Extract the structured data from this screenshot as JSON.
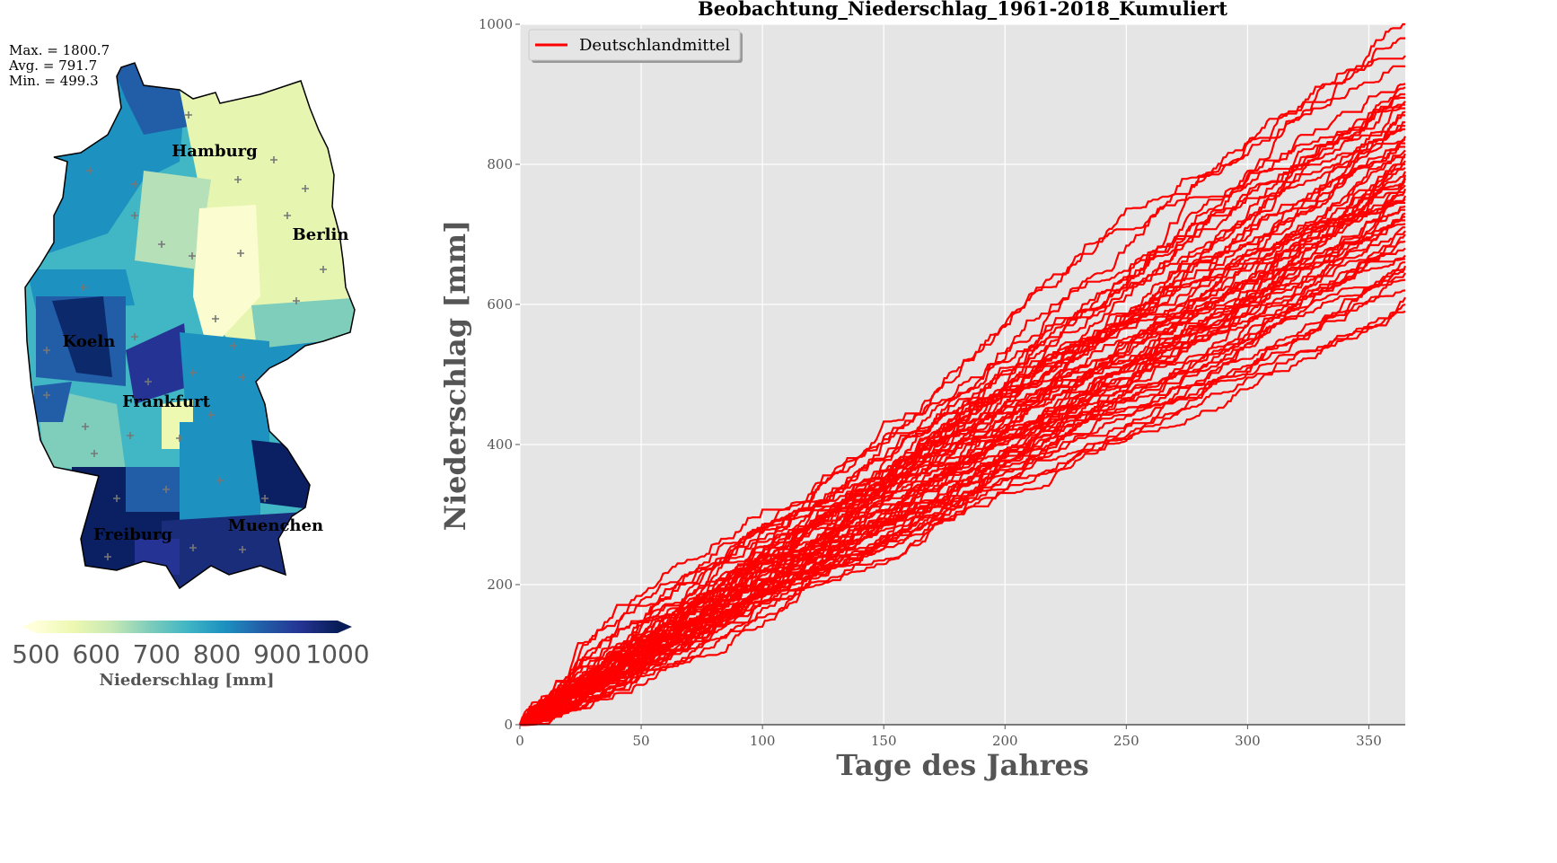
{
  "map": {
    "stats": {
      "max": "Max. = 1800.7",
      "avg": "Avg. = 791.7",
      "min": "Min. = 499.3"
    },
    "cities": [
      "Hamburg",
      "Berlin",
      "Koeln",
      "Frankfurt",
      "Freiburg",
      "Muenchen"
    ],
    "colorbar": {
      "ticks": [
        "500",
        "600",
        "700",
        "800",
        "900",
        "1000"
      ],
      "label": "Niederschlag [mm]",
      "colors": [
        "#ffffd9",
        "#edf8b1",
        "#c7e9b4",
        "#7fcdbb",
        "#41b6c4",
        "#1d91c0",
        "#225ea8",
        "#253494",
        "#081d58"
      ]
    }
  },
  "chart_data": {
    "type": "line",
    "title": "Beobachtung_Niederschlag_1961-2018_Kumuliert",
    "xlabel": "Tage des Jahres",
    "ylabel": "Niederschlag [mm]",
    "xlim": [
      0,
      365
    ],
    "ylim": [
      0,
      1000
    ],
    "xticks": [
      "0",
      "50",
      "100",
      "150",
      "200",
      "250",
      "300",
      "350"
    ],
    "yticks": [
      "0",
      "200",
      "400",
      "600",
      "800",
      "1000"
    ],
    "grid": true,
    "legend": {
      "entries": [
        "Deutschlandmittel"
      ],
      "placement": "top-left"
    },
    "line_color": "#ff0000",
    "series_count": 58,
    "series_end_values": [
      590,
      600,
      610,
      620,
      635,
      645,
      650,
      655,
      660,
      665,
      670,
      680,
      690,
      700,
      705,
      710,
      715,
      720,
      725,
      730,
      735,
      740,
      745,
      750,
      755,
      760,
      765,
      770,
      775,
      780,
      785,
      790,
      795,
      800,
      805,
      810,
      815,
      820,
      825,
      830,
      835,
      840,
      850,
      855,
      860,
      870,
      875,
      880,
      885,
      890,
      895,
      900,
      910,
      915,
      940,
      955,
      980,
      1000
    ]
  }
}
